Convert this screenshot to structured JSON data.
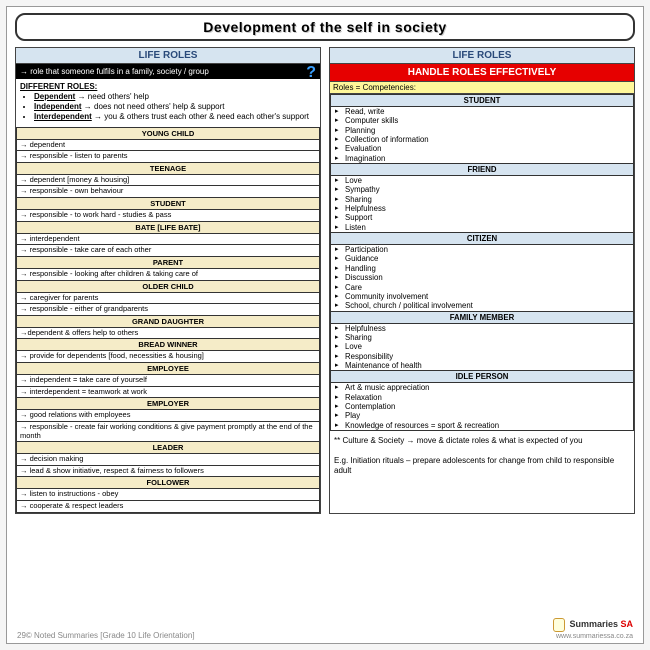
{
  "title": "Development of the self in society",
  "leftHeader": "LIFE ROLES",
  "rightHeader": "LIFE ROLES",
  "intro": "→ role that someone fulfils in a family, society / group",
  "diffRolesHd": "DIFFERENT ROLES:",
  "dr1t": "Dependent",
  "dr1d": " → need others' help",
  "dr2t": "Independent",
  "dr2d": " → does not need others' help & support",
  "dr3t": "Interdependent",
  "dr3d": " → you & others trust each other & need each other's support",
  "L": [
    {
      "h": "YOUNG CHILD",
      "r": [
        "→ dependent",
        "→ responsible - listen to parents"
      ]
    },
    {
      "h": "TEENAGE",
      "r": [
        "→ dependent [money & housing]",
        "→ responsible - own behaviour"
      ]
    },
    {
      "h": "STUDENT",
      "r": [
        "→ responsible - to work hard - studies & pass"
      ]
    },
    {
      "h": "BATE [LIFE BATE]",
      "r": [
        "→ interdependent",
        "→ responsible - take care of each other"
      ]
    },
    {
      "h": "PARENT",
      "r": [
        "→ responsible - looking after children & taking care of"
      ]
    },
    {
      "h": "OLDER CHILD",
      "r": [
        "→ caregiver for parents",
        "→ responsible - either of grandparents"
      ]
    },
    {
      "h": "GRAND DAUGHTER",
      "r": [
        "→dependent & offers help to others"
      ]
    },
    {
      "h": "BREAD WINNER",
      "r": [
        "→ provide for dependents [food, necessities & housing]"
      ]
    },
    {
      "h": "EMPLOYEE",
      "r": [
        "→ independent = take care of yourself",
        "→ interdependent = teamwork at work"
      ]
    },
    {
      "h": "EMPLOYER",
      "r": [
        "→ good relations with employees",
        "→ responsible - create fair working conditions & give payment promptly at the end of the month"
      ]
    },
    {
      "h": "LEADER",
      "r": [
        "→ decision making",
        "→ lead & show initiative, respect & fairness to followers"
      ]
    },
    {
      "h": "FOLLOWER",
      "r": [
        "→ listen to instructions - obey",
        "→ cooperate & respect leaders"
      ]
    }
  ],
  "redBanner": "HANDLE ROLES EFFECTIVELY",
  "yellowStrip": "Roles = Competencies:",
  "R": [
    {
      "h": "STUDENT",
      "r": [
        "Read, write",
        "Computer skills",
        "Planning",
        "Collection of information",
        "Evaluation",
        "Imagination"
      ]
    },
    {
      "h": "FRIEND",
      "r": [
        "Love",
        "Sympathy",
        "Sharing",
        "Helpfulness",
        "Support",
        "Listen"
      ]
    },
    {
      "h": "CITIZEN",
      "r": [
        "Participation",
        "Guidance",
        "Handling",
        "Discussion",
        "Care",
        "Community involvement",
        "School, church / political involvement"
      ]
    },
    {
      "h": "FAMILY MEMBER",
      "r": [
        "Helpfulness",
        "Sharing",
        "Love",
        "Responsibility",
        "Maintenance of health"
      ]
    },
    {
      "h": "IDLE PERSON",
      "r": [
        "Art & music appreciation",
        "Relaxation",
        "Contemplation",
        "Play",
        "Knowledge of resources = sport & recreation"
      ]
    }
  ],
  "note1": "** Culture & Society → move & dictate roles & what is expected of you",
  "note2": "E.g. Initiation rituals – prepare adolescents for change from child to responsible adult",
  "footerLeft": "29© Noted Summaries [Grade 10 Life Orientation]",
  "brandName1": "Summaries",
  "brandName2": " SA",
  "brandUrl": "www.summariessa.co.za"
}
